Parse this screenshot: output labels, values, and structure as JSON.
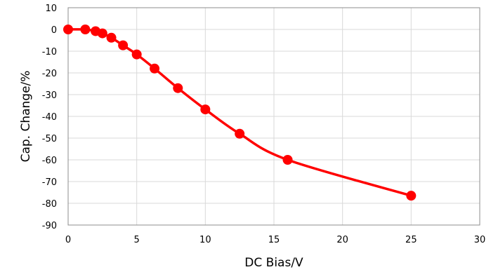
{
  "chart_data": {
    "type": "line",
    "title": "",
    "xlabel": "DC Bias/V",
    "ylabel": "Cap. Change/%",
    "xlim": [
      0,
      30
    ],
    "ylim": [
      -90,
      10
    ],
    "x_ticks": [
      0,
      5,
      10,
      15,
      20,
      25,
      30
    ],
    "y_ticks": [
      10,
      0,
      -10,
      -20,
      -30,
      -40,
      -50,
      -60,
      -70,
      -80,
      -90
    ],
    "grid": true,
    "legend": "none",
    "series": [
      {
        "color": "#ff0000",
        "x": [
          0,
          1.25,
          2,
          2.5,
          3.15,
          4,
          5,
          6.3,
          8,
          10,
          12.5,
          16,
          25
        ],
        "y": [
          0,
          0,
          -0.8,
          -1.8,
          -3.8,
          -7.3,
          -11.5,
          -18,
          -27,
          -36.8,
          -48,
          -60,
          -76.5
        ]
      }
    ]
  }
}
